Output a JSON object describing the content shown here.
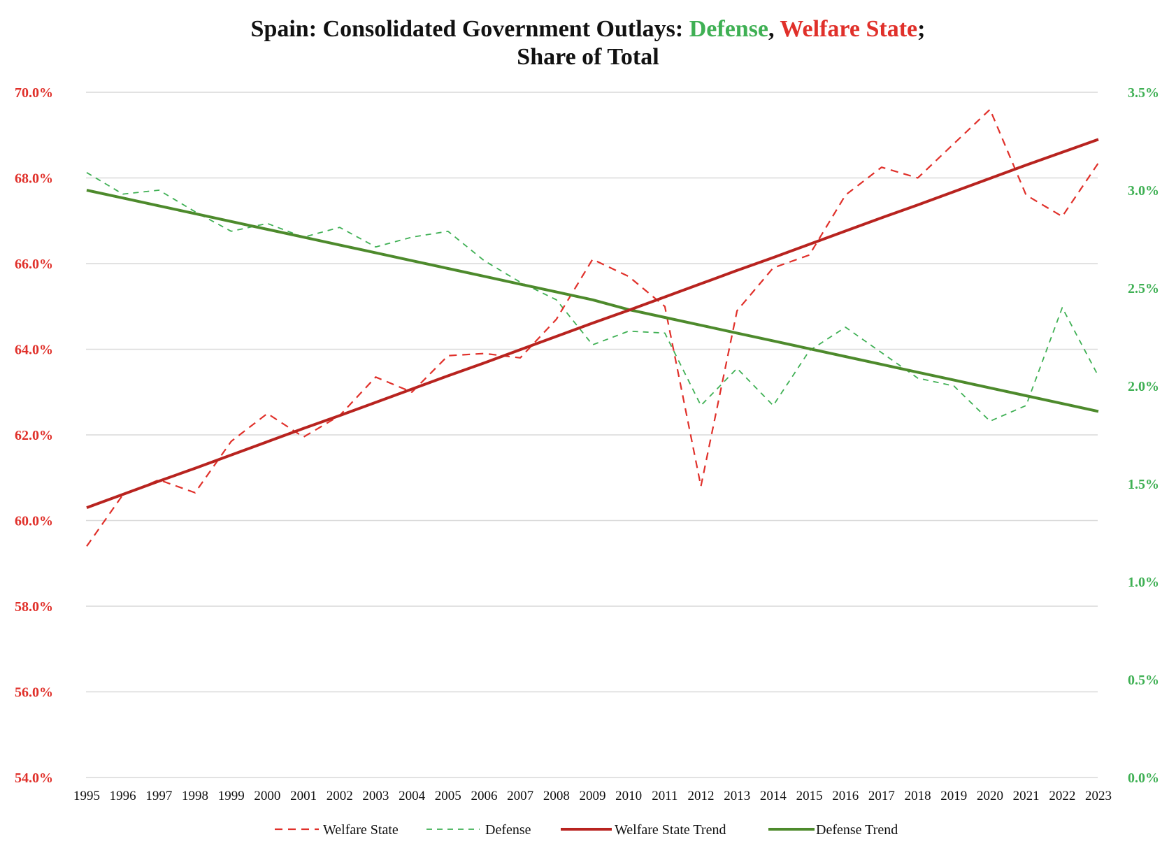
{
  "title": {
    "prefix": "Spain: Consolidated Government Outlays: ",
    "defense_word": "Defense",
    "comma": ", ",
    "welfare_word": "Welfare State",
    "suffix": ";",
    "line2": "Share of Total"
  },
  "colors": {
    "welfare": "#e0302a",
    "defense": "#3fb054",
    "welfare_trend": "#b8231f",
    "defense_trend": "#4d8a2c",
    "grid": "#d9d9d9"
  },
  "chart_data": {
    "type": "line",
    "x": [
      1995,
      1996,
      1997,
      1998,
      1999,
      2000,
      2001,
      2002,
      2003,
      2004,
      2005,
      2006,
      2007,
      2008,
      2009,
      2010,
      2011,
      2012,
      2013,
      2014,
      2015,
      2016,
      2017,
      2018,
      2019,
      2020,
      2021,
      2022,
      2023
    ],
    "y_left": {
      "ylim": [
        54.0,
        70.0
      ],
      "ticks": [
        "54.0%",
        "56.0%",
        "58.0%",
        "60.0%",
        "62.0%",
        "64.0%",
        "66.0%",
        "68.0%",
        "70.0%"
      ],
      "tick_values": [
        54,
        56,
        58,
        60,
        62,
        64,
        66,
        68,
        70
      ]
    },
    "y_right": {
      "ylim": [
        0.0,
        3.5
      ],
      "ticks": [
        "0.0%",
        "0.5%",
        "1.0%",
        "1.5%",
        "2.0%",
        "2.5%",
        "3.0%",
        "3.5%"
      ],
      "tick_values": [
        0,
        0.5,
        1.0,
        1.5,
        2.0,
        2.5,
        3.0,
        3.5
      ]
    },
    "grid": "horizontal",
    "legend_placement": "bottom",
    "series": [
      {
        "name": "Welfare State",
        "axis": "left",
        "style": "dashed",
        "values": [
          59.4,
          60.6,
          60.95,
          60.65,
          61.85,
          62.5,
          61.95,
          62.45,
          63.35,
          63.0,
          63.85,
          63.9,
          63.8,
          64.7,
          66.1,
          65.7,
          65.0,
          60.8,
          64.9,
          65.9,
          66.2,
          67.6,
          68.25,
          68.0,
          68.8,
          69.6,
          67.6,
          67.1,
          68.35
        ]
      },
      {
        "name": "Defense",
        "axis": "right",
        "style": "dashed",
        "values": [
          3.09,
          2.98,
          3.0,
          2.89,
          2.79,
          2.83,
          2.76,
          2.81,
          2.71,
          2.76,
          2.79,
          2.64,
          2.53,
          2.44,
          2.21,
          2.28,
          2.27,
          1.9,
          2.09,
          1.9,
          2.18,
          2.3,
          2.17,
          2.04,
          2.0,
          1.82,
          1.9,
          2.4,
          2.05
        ]
      },
      {
        "name": "Welfare State Trend",
        "axis": "left",
        "style": "solid",
        "values": [
          60.3,
          60.61,
          60.92,
          61.22,
          61.53,
          61.84,
          62.15,
          62.45,
          62.76,
          63.07,
          63.38,
          63.68,
          63.99,
          64.3,
          64.61,
          64.91,
          65.22,
          65.53,
          65.84,
          66.14,
          66.45,
          66.76,
          67.07,
          67.37,
          67.68,
          67.99,
          68.3,
          68.6,
          68.9
        ]
      },
      {
        "name": "Defense Trend",
        "axis": "right",
        "style": "solid",
        "values": [
          3.0,
          2.96,
          2.92,
          2.88,
          2.84,
          2.8,
          2.76,
          2.72,
          2.68,
          2.64,
          2.6,
          2.56,
          2.52,
          2.48,
          2.44,
          2.39,
          2.35,
          2.31,
          2.27,
          2.23,
          2.19,
          2.15,
          2.11,
          2.07,
          2.03,
          1.99,
          1.95,
          1.91,
          1.87
        ]
      }
    ]
  }
}
